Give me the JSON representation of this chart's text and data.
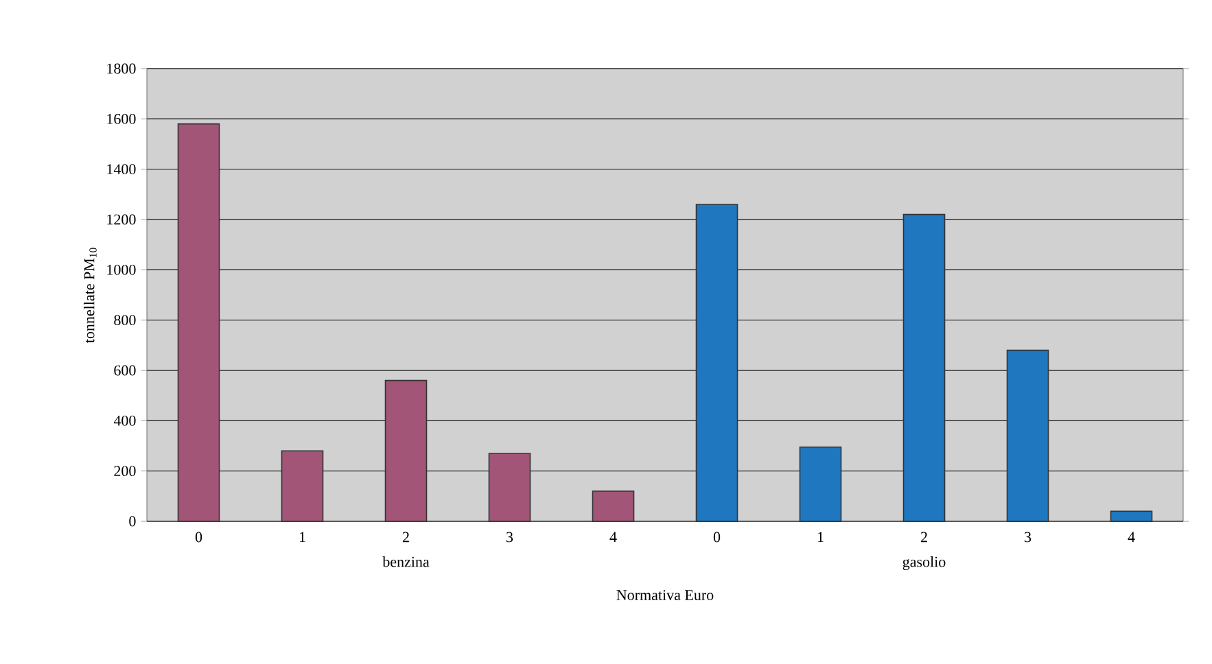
{
  "chart_data": {
    "type": "bar",
    "xlabel": "Normativa Euro",
    "ylabel": "tonnellate PM$_{10}$",
    "categories": [
      "0",
      "1",
      "2",
      "3",
      "4",
      "0",
      "1",
      "2",
      "3",
      "4"
    ],
    "values": [
      1580,
      280,
      560,
      270,
      120,
      1260,
      295,
      1220,
      680,
      40
    ],
    "colors": [
      "#a25577",
      "#a25577",
      "#a25577",
      "#a25577",
      "#a25577",
      "#1f77bf",
      "#1f77bf",
      "#1f77bf",
      "#1f77bf",
      "#1f77bf"
    ],
    "ylim": [
      0,
      1800
    ],
    "yticks": [
      0,
      200,
      400,
      600,
      800,
      1000,
      1200,
      1400,
      1600,
      1800
    ],
    "grid": "y",
    "annotations": [
      "benzina",
      "gasolio"
    ]
  }
}
